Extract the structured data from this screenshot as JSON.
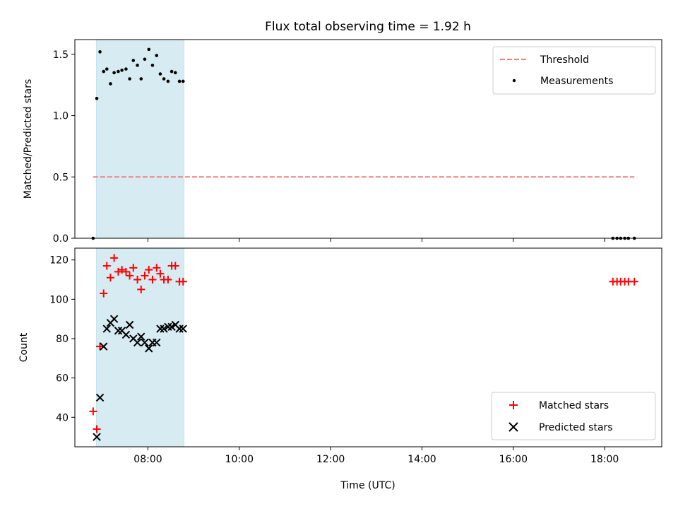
{
  "chart_data": {
    "type": "scatter",
    "title": "Flux total observing time = 1.92 h",
    "xlabel": "Time (UTC)",
    "x_ticks": [
      "08:00",
      "10:00",
      "12:00",
      "14:00",
      "16:00",
      "18:00"
    ],
    "x_tick_values": [
      8,
      10,
      12,
      14,
      16,
      18
    ],
    "xlim": [
      6.4,
      19.25
    ],
    "shaded_interval": {
      "start": 6.87,
      "end": 8.79,
      "color": "#add8e6"
    },
    "panels": [
      {
        "ylabel": "Matched/Predicted stars",
        "ylim": [
          0,
          1.62
        ],
        "y_ticks": [
          "0.0",
          "0.5",
          "1.0",
          "1.5"
        ],
        "y_tick_values": [
          0,
          0.5,
          1.0,
          1.5
        ],
        "legend_position": "upper right",
        "threshold": {
          "name": "Threshold",
          "value": 0.5,
          "x_range": [
            6.8,
            18.65
          ],
          "color": "#f08080"
        },
        "measurements": {
          "name": "Measurements",
          "color": "#000000",
          "x": [
            6.8,
            6.88,
            6.95,
            7.03,
            7.1,
            7.18,
            7.26,
            7.35,
            7.43,
            7.52,
            7.6,
            7.68,
            7.77,
            7.85,
            7.93,
            8.02,
            8.1,
            8.19,
            8.27,
            8.35,
            8.44,
            8.52,
            8.6,
            8.69,
            8.77,
            18.18,
            18.27,
            18.35,
            18.44,
            18.52,
            18.65
          ],
          "y": [
            0.0,
            1.14,
            1.52,
            1.36,
            1.38,
            1.26,
            1.35,
            1.36,
            1.37,
            1.38,
            1.3,
            1.45,
            1.41,
            1.3,
            1.46,
            1.54,
            1.41,
            1.49,
            1.34,
            1.3,
            1.28,
            1.36,
            1.35,
            1.28,
            1.28,
            0.0,
            0.0,
            0.0,
            0.0,
            0.0,
            0.0
          ]
        }
      },
      {
        "ylabel": "Count",
        "ylim": [
          25,
          126
        ],
        "y_ticks": [
          "40",
          "60",
          "80",
          "100",
          "120"
        ],
        "y_tick_values": [
          40,
          60,
          80,
          100,
          120
        ],
        "legend_position": "lower right",
        "series": [
          {
            "name": "Matched stars",
            "marker": "+",
            "color": "#ff0000",
            "x": [
              6.8,
              6.88,
              6.95,
              7.03,
              7.1,
              7.18,
              7.26,
              7.35,
              7.43,
              7.52,
              7.6,
              7.68,
              7.77,
              7.85,
              7.93,
              8.02,
              8.1,
              8.19,
              8.27,
              8.35,
              8.44,
              8.52,
              8.6,
              8.69,
              8.77,
              18.18,
              18.27,
              18.35,
              18.44,
              18.52,
              18.65
            ],
            "y": [
              43,
              34,
              76,
              103,
              117,
              111,
              121,
              114,
              115,
              114,
              112,
              116,
              110,
              105,
              112,
              115,
              110,
              116,
              113,
              110,
              110,
              117,
              117,
              109,
              109,
              109,
              109,
              109,
              109,
              109,
              109
            ]
          },
          {
            "name": "Predicted stars",
            "marker": "x",
            "color": "#000000",
            "x": [
              6.88,
              6.95,
              7.03,
              7.1,
              7.18,
              7.26,
              7.35,
              7.43,
              7.52,
              7.6,
              7.68,
              7.77,
              7.85,
              7.93,
              8.02,
              8.1,
              8.19,
              8.27,
              8.35,
              8.44,
              8.52,
              8.6,
              8.69,
              8.77
            ],
            "y": [
              30,
              50,
              76,
              85,
              88,
              90,
              84,
              84,
              82,
              87,
              80,
              78,
              81,
              78,
              75,
              78,
              78,
              85,
              85,
              86,
              86,
              87,
              85,
              85
            ]
          }
        ]
      }
    ]
  }
}
